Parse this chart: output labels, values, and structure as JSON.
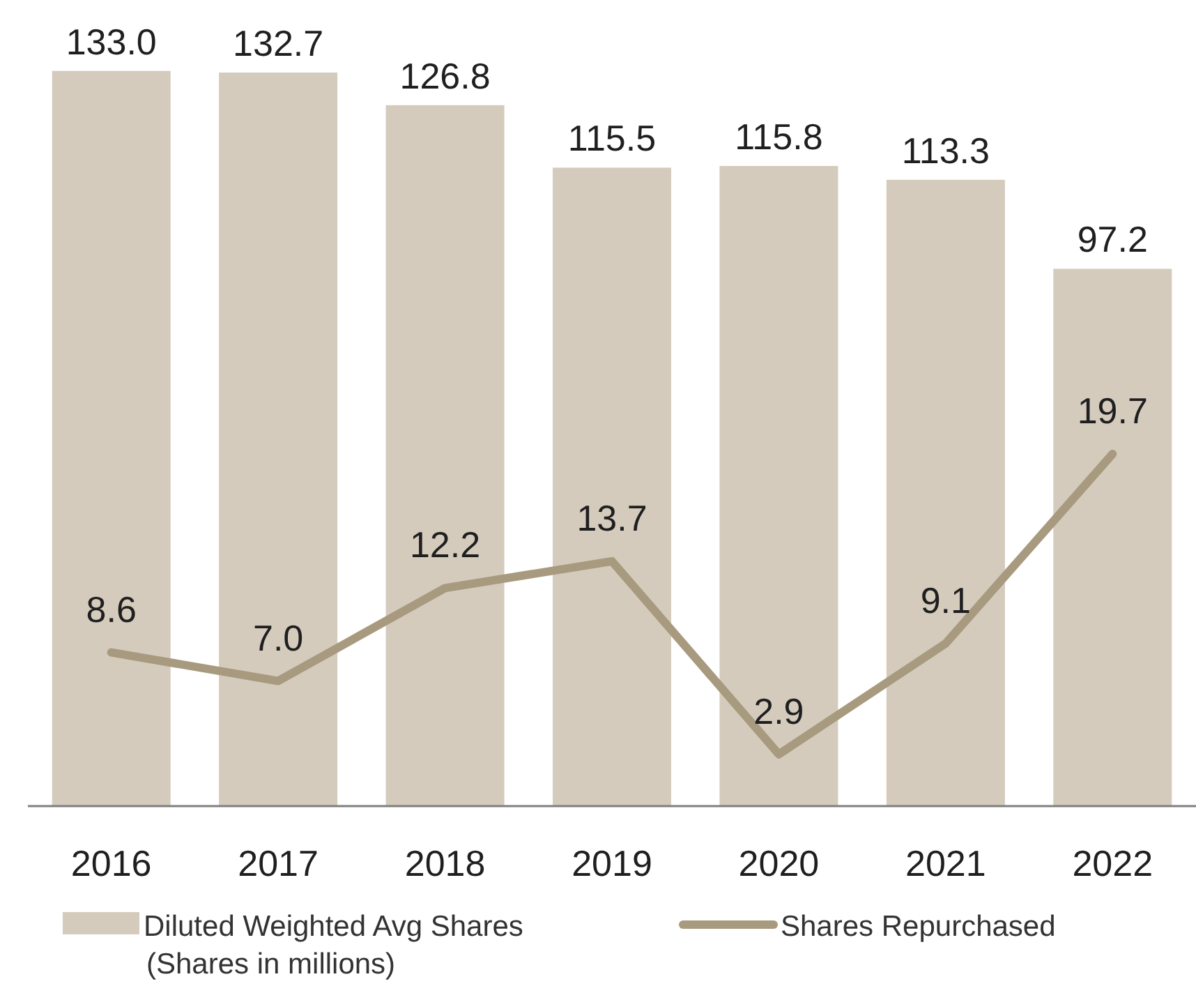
{
  "chart_data": {
    "type": "bar",
    "categories": [
      "2016",
      "2017",
      "2018",
      "2019",
      "2020",
      "2021",
      "2022"
    ],
    "series": [
      {
        "name": "Diluted Weighted Avg Shares",
        "color": "#d4cbbd",
        "values": [
          133.0,
          132.7,
          126.8,
          115.5,
          115.8,
          113.3,
          97.2
        ],
        "value_labels": [
          "133.0",
          "132.7",
          "126.8",
          "115.5",
          "115.8",
          "113.3",
          "97.2"
        ]
      },
      {
        "name": "Shares Repurchased",
        "type": "line",
        "axis": "y2",
        "color": "#a89a7e",
        "values": [
          8.6,
          7.0,
          12.2,
          13.7,
          2.9,
          9.1,
          19.7
        ],
        "value_labels": [
          "8.6",
          "7.0",
          "12.2",
          "13.7",
          "2.9",
          "9.1",
          "19.7"
        ]
      }
    ],
    "tick_labels": "x",
    "legend": "bottom",
    "marker": "none",
    "annotations": [
      "(Shares in millions)"
    ]
  }
}
